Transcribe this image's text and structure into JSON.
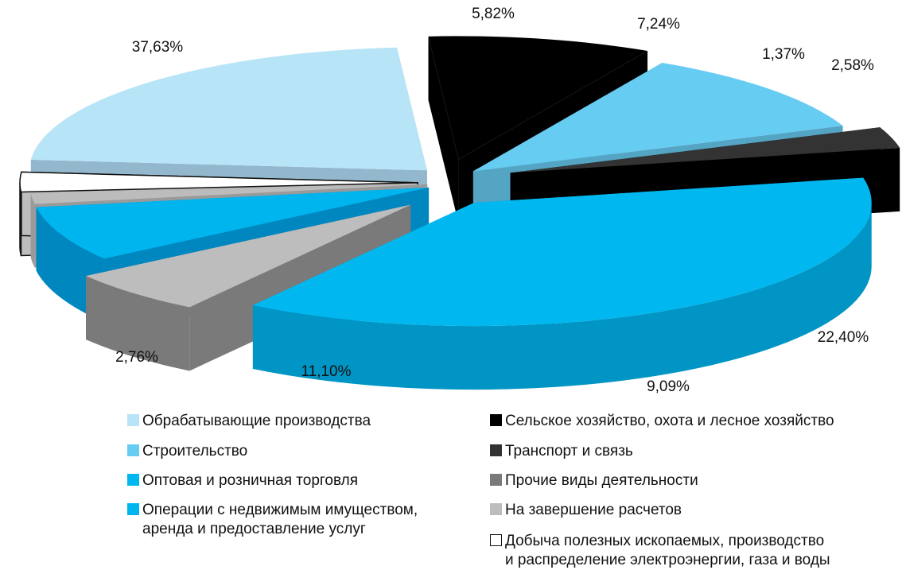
{
  "chart_data": {
    "type": "pie",
    "title": "",
    "slices": [
      {
        "label": "Обрабатывающие производства",
        "value": 22.4,
        "value_label": "22,40%",
        "color": "#b8e4f8",
        "side": "#93b7cc"
      },
      {
        "label": "Сельское хозяйство, охота и лесное хозяйство",
        "value": 9.09,
        "value_label": "9,09%",
        "color": "#000000",
        "side": "#000000"
      },
      {
        "label": "Строительство",
        "value": 11.1,
        "value_label": "11,10%",
        "color": "#66ccf2",
        "side": "#54a5c4"
      },
      {
        "label": "Транспорт и связь",
        "value": 2.76,
        "value_label": "2,76%",
        "color": "#333333",
        "side": "#000000"
      },
      {
        "label": "Оптовая и розничная торговля",
        "value": 37.63,
        "value_label": "37,63%",
        "color": "#00b8ef",
        "side": "#0095c4"
      },
      {
        "label": "Прочие виды деятельности",
        "value": 5.82,
        "value_label": "5,82%",
        "color": "#bdbdbd",
        "side": "#7a7a7a"
      },
      {
        "label": "Операции с недвижимым имуществом, аренда и предоставление услуг",
        "value": 7.24,
        "value_label": "7,24%",
        "color": "#00b4ee",
        "side": "#0087bf"
      },
      {
        "label": "На завершение расчетов",
        "value": 1.37,
        "value_label": "1,37%",
        "color": "#bcbcbc",
        "side": "#9a9a9a"
      },
      {
        "label": "Добыча полезных ископаемых, производство и распределение электроэнергии, газа и воды",
        "value": 2.58,
        "value_label": "2,58%",
        "color": "#ffffff",
        "side": "#bdbdbd"
      }
    ],
    "legend": [
      {
        "text": "Обрабатывающие производства",
        "color": "#b8e4f8"
      },
      {
        "text": "Сельское хозяйство, охота и лесное хозяйство",
        "color": "#000000"
      },
      {
        "text": "Строительство",
        "color": "#66ccf2"
      },
      {
        "text": "Транспорт и связь",
        "color": "#333333"
      },
      {
        "text": "Оптовая и розничная торговля",
        "color": "#00b8ef"
      },
      {
        "text": "Прочие виды деятельности",
        "color": "#7a7a7a"
      },
      {
        "text": "Операции с недвижимым имуществом,\nаренда и предоставление услуг",
        "color": "#00b4ee"
      },
      {
        "text": "На завершение расчетов",
        "color": "#bdbdbd"
      },
      {
        "text": "Добыча полезных ископаемых, производство\n и распределение электроэнергии, газа и воды",
        "color": "#ffffff"
      }
    ],
    "legend_placement": "bottom"
  }
}
